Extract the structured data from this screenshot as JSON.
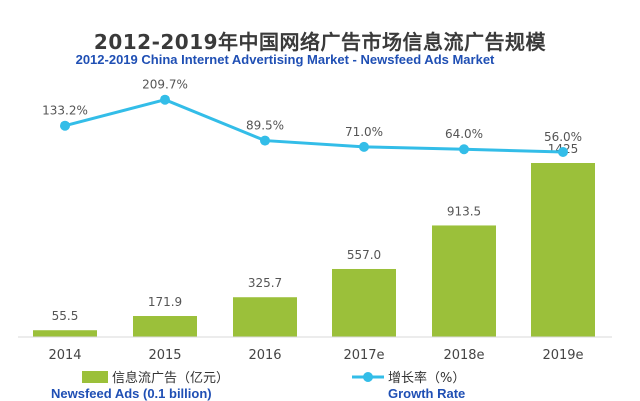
{
  "chart_data": {
    "type": "bar+line",
    "title": "2012-2019年中国网络广告市场信息流广告规模",
    "subtitle": "2012-2019 China Internet Advertising Market - Newsfeed Ads Market",
    "categories": [
      "2014",
      "2015",
      "2016",
      "2017e",
      "2018e",
      "2019e"
    ],
    "bar_series": {
      "name": "信息流广告（亿元）",
      "name_en": "Newsfeed Ads (0.1 billion)",
      "values": [
        55.5,
        171.9,
        325.7,
        557.0,
        913.5,
        1425
      ],
      "labels": [
        "55.5",
        "171.9",
        "325.7",
        "557.0",
        "913.5",
        "1425"
      ],
      "color": "#9bc03a"
    },
    "line_series": {
      "name": "增长率（%）",
      "name_en": "Growth Rate",
      "values": [
        133.2,
        209.7,
        89.5,
        71.0,
        64.0,
        56.0
      ],
      "labels": [
        "133.2%",
        "209.7%",
        "89.5%",
        "71.0%",
        "64.0%",
        "56.0%"
      ],
      "color": "#33bde8"
    },
    "legend_position": "bottom",
    "grid": false
  }
}
